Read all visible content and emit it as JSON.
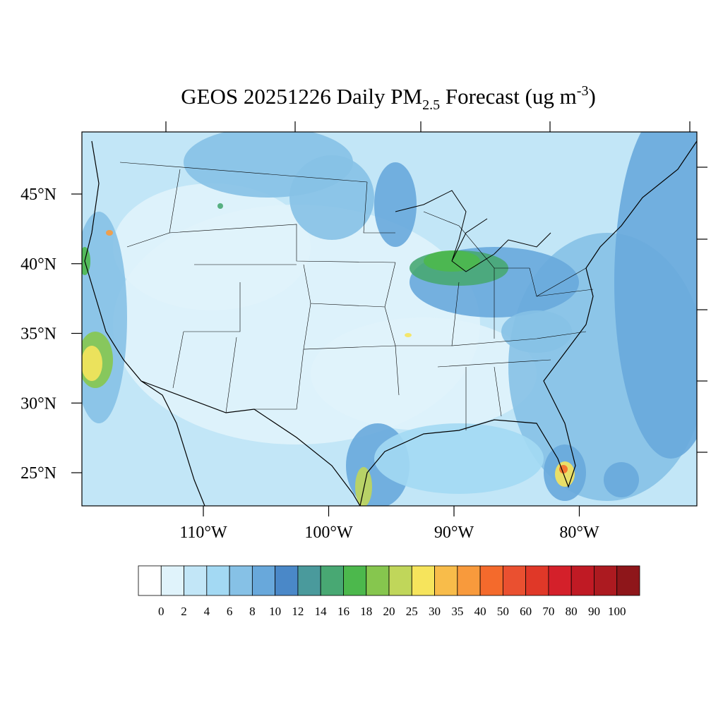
{
  "map": {
    "title": {
      "main": "GEOS 20251226 Daily PM",
      "sub": "2.5",
      "rest": " Forecast (ug m",
      "sup": "-3",
      "end": ")"
    },
    "lat_ticks": [
      {
        "value": 45,
        "label": "45°N"
      },
      {
        "value": 40,
        "label": "40°N"
      },
      {
        "value": 35,
        "label": "35°N"
      },
      {
        "value": 30,
        "label": "30°N"
      },
      {
        "value": 25,
        "label": "25°N"
      }
    ],
    "lon_ticks": [
      {
        "value": -110,
        "label": "110°W"
      },
      {
        "value": -100,
        "label": "100°W"
      },
      {
        "value": -90,
        "label": "90°W"
      },
      {
        "value": -80,
        "label": "80°W"
      }
    ],
    "colorbar": {
      "levels": [
        0,
        2,
        4,
        6,
        8,
        10,
        12,
        14,
        16,
        18,
        20,
        25,
        30,
        35,
        40,
        50,
        60,
        70,
        80,
        90,
        100
      ],
      "colors": [
        "#ffffff",
        "#e0f3fb",
        "#c2e6f7",
        "#a3d9f3",
        "#86c1e6",
        "#68a8db",
        "#4a88c8",
        "#4a9a9c",
        "#48a873",
        "#4cb84c",
        "#86c64e",
        "#c0d65a",
        "#f6e45c",
        "#f8bc4a",
        "#f89a3c",
        "#f46a2c",
        "#ea5030",
        "#e03828",
        "#d4202a",
        "#c01a24",
        "#ac1a20",
        "#8e161a"
      ]
    }
  }
}
